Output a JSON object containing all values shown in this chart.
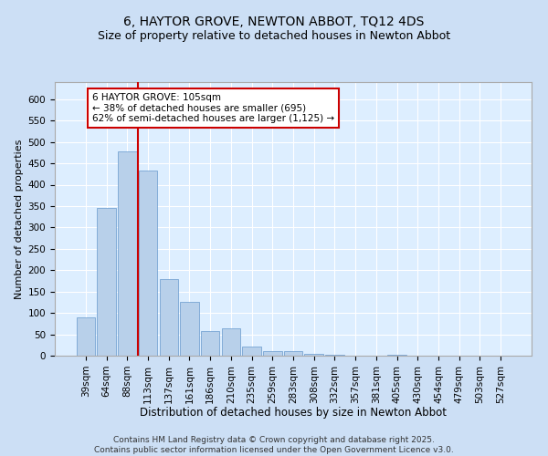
{
  "title1": "6, HAYTOR GROVE, NEWTON ABBOT, TQ12 4DS",
  "title2": "Size of property relative to detached houses in Newton Abbot",
  "xlabel": "Distribution of detached houses by size in Newton Abbot",
  "ylabel": "Number of detached properties",
  "categories": [
    "39sqm",
    "64sqm",
    "88sqm",
    "113sqm",
    "137sqm",
    "161sqm",
    "186sqm",
    "210sqm",
    "235sqm",
    "259sqm",
    "283sqm",
    "308sqm",
    "332sqm",
    "357sqm",
    "381sqm",
    "405sqm",
    "430sqm",
    "454sqm",
    "479sqm",
    "503sqm",
    "527sqm"
  ],
  "values": [
    90,
    345,
    478,
    433,
    180,
    125,
    58,
    65,
    22,
    10,
    10,
    5,
    3,
    0,
    0,
    2,
    0,
    0,
    1,
    0,
    0
  ],
  "bar_color": "#b8d0ea",
  "bar_edgecolor": "#6699cc",
  "vline_x": 2.5,
  "vline_color": "#cc0000",
  "annotation_text": "6 HAYTOR GROVE: 105sqm\n← 38% of detached houses are smaller (695)\n62% of semi-detached houses are larger (1,125) →",
  "annotation_box_facecolor": "#ffffff",
  "annotation_box_edgecolor": "#cc0000",
  "ylim": [
    0,
    640
  ],
  "yticks": [
    0,
    50,
    100,
    150,
    200,
    250,
    300,
    350,
    400,
    450,
    500,
    550,
    600
  ],
  "background_color": "#ccdff5",
  "plot_background_color": "#ddeeff",
  "footer_text": "Contains HM Land Registry data © Crown copyright and database right 2025.\nContains public sector information licensed under the Open Government Licence v3.0.",
  "title1_fontsize": 10,
  "title2_fontsize": 9,
  "xlabel_fontsize": 8.5,
  "ylabel_fontsize": 8,
  "tick_fontsize": 7.5,
  "annotation_fontsize": 7.5,
  "footer_fontsize": 6.5
}
